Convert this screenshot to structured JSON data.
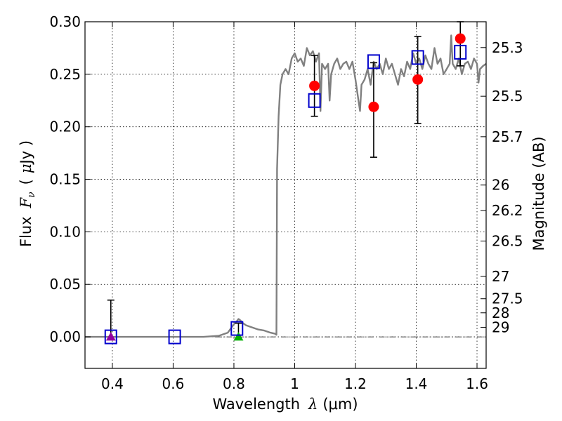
{
  "chart_data": {
    "type": "scatter",
    "xlabel_prefix": "Wavelength",
    "xlabel_symbol": "λ",
    "xlabel_units": "(μm)",
    "ylabel_prefix": "Flux",
    "ylabel_symbol": "F",
    "ylabel_subscript": "ν",
    "ylabel_units_open": "(",
    "ylabel_units_mu": "μ",
    "ylabel_units_rest": "Jy )",
    "y2label": "Magnitude (AB)",
    "xlim": [
      0.31,
      1.63
    ],
    "ylim": [
      -0.03,
      0.3
    ],
    "grid": true,
    "x_ticks": [
      {
        "value": 0.4,
        "label": "0.4"
      },
      {
        "value": 0.6,
        "label": "0.6"
      },
      {
        "value": 0.8,
        "label": "0.8"
      },
      {
        "value": 1.0,
        "label": "1"
      },
      {
        "value": 1.2,
        "label": "1.2"
      },
      {
        "value": 1.4,
        "label": "1.4"
      },
      {
        "value": 1.6,
        "label": "1.6"
      }
    ],
    "y_ticks": [
      {
        "value": 0.0,
        "label": "0.00"
      },
      {
        "value": 0.05,
        "label": "0.05"
      },
      {
        "value": 0.1,
        "label": "0.10"
      },
      {
        "value": 0.15,
        "label": "0.15"
      },
      {
        "value": 0.2,
        "label": "0.20"
      },
      {
        "value": 0.25,
        "label": "0.25"
      },
      {
        "value": 0.3,
        "label": "0.30"
      }
    ],
    "mag_ticks": [
      {
        "value": 25.3,
        "label": "25.3"
      },
      {
        "value": 25.5,
        "label": "25.5"
      },
      {
        "value": 25.7,
        "label": "25.7"
      },
      {
        "value": 26.0,
        "label": "26"
      },
      {
        "value": 26.2,
        "label": "26.2"
      },
      {
        "value": 26.5,
        "label": "26.5"
      },
      {
        "value": 27.0,
        "label": "27"
      },
      {
        "value": 27.5,
        "label": "27.5"
      },
      {
        "value": 28.0,
        "label": "28"
      },
      {
        "value": 29.0,
        "label": "29"
      }
    ],
    "model_sed": {
      "color": "#808080",
      "points": [
        [
          0.31,
          0.0
        ],
        [
          0.7,
          0.0
        ],
        [
          0.75,
          0.001
        ],
        [
          0.78,
          0.004
        ],
        [
          0.79,
          0.008
        ],
        [
          0.8,
          0.012
        ],
        [
          0.81,
          0.015
        ],
        [
          0.815,
          0.017
        ],
        [
          0.82,
          0.016
        ],
        [
          0.83,
          0.013
        ],
        [
          0.84,
          0.011
        ],
        [
          0.86,
          0.009
        ],
        [
          0.88,
          0.007
        ],
        [
          0.9,
          0.006
        ],
        [
          0.92,
          0.004
        ],
        [
          0.935,
          0.003
        ],
        [
          0.94,
          0.002
        ],
        [
          0.942,
          0.16
        ],
        [
          0.947,
          0.21
        ],
        [
          0.953,
          0.24
        ],
        [
          0.96,
          0.25
        ],
        [
          0.97,
          0.255
        ],
        [
          0.98,
          0.25
        ],
        [
          0.99,
          0.265
        ],
        [
          1.0,
          0.27
        ],
        [
          1.01,
          0.262
        ],
        [
          1.02,
          0.265
        ],
        [
          1.03,
          0.258
        ],
        [
          1.04,
          0.275
        ],
        [
          1.05,
          0.268
        ],
        [
          1.06,
          0.272
        ],
        [
          1.07,
          0.262
        ],
        [
          1.08,
          0.27
        ],
        [
          1.085,
          0.215
        ],
        [
          1.09,
          0.26
        ],
        [
          1.1,
          0.255
        ],
        [
          1.11,
          0.26
        ],
        [
          1.115,
          0.225
        ],
        [
          1.12,
          0.25
        ],
        [
          1.13,
          0.26
        ],
        [
          1.14,
          0.265
        ],
        [
          1.15,
          0.255
        ],
        [
          1.16,
          0.26
        ],
        [
          1.17,
          0.262
        ],
        [
          1.18,
          0.255
        ],
        [
          1.19,
          0.262
        ],
        [
          1.2,
          0.245
        ],
        [
          1.21,
          0.225
        ],
        [
          1.215,
          0.215
        ],
        [
          1.22,
          0.24
        ],
        [
          1.23,
          0.245
        ],
        [
          1.24,
          0.255
        ],
        [
          1.25,
          0.24
        ],
        [
          1.26,
          0.262
        ],
        [
          1.27,
          0.255
        ],
        [
          1.28,
          0.26
        ],
        [
          1.29,
          0.25
        ],
        [
          1.3,
          0.265
        ],
        [
          1.31,
          0.255
        ],
        [
          1.32,
          0.26
        ],
        [
          1.33,
          0.25
        ],
        [
          1.34,
          0.24
        ],
        [
          1.35,
          0.255
        ],
        [
          1.36,
          0.248
        ],
        [
          1.37,
          0.262
        ],
        [
          1.38,
          0.255
        ],
        [
          1.39,
          0.27
        ],
        [
          1.4,
          0.26
        ],
        [
          1.41,
          0.265
        ],
        [
          1.42,
          0.255
        ],
        [
          1.43,
          0.268
        ],
        [
          1.44,
          0.26
        ],
        [
          1.45,
          0.255
        ],
        [
          1.46,
          0.275
        ],
        [
          1.47,
          0.26
        ],
        [
          1.48,
          0.265
        ],
        [
          1.49,
          0.25
        ],
        [
          1.5,
          0.255
        ],
        [
          1.51,
          0.26
        ],
        [
          1.515,
          0.287
        ],
        [
          1.52,
          0.26
        ],
        [
          1.53,
          0.255
        ],
        [
          1.54,
          0.265
        ],
        [
          1.55,
          0.25
        ],
        [
          1.56,
          0.26
        ],
        [
          1.57,
          0.262
        ],
        [
          1.58,
          0.255
        ],
        [
          1.59,
          0.265
        ],
        [
          1.6,
          0.26
        ],
        [
          1.605,
          0.242
        ],
        [
          1.61,
          0.255
        ],
        [
          1.62,
          0.258
        ],
        [
          1.63,
          0.26
        ]
      ]
    },
    "observed": {
      "color": "#ff0000",
      "points": [
        {
          "x": 1.065,
          "y": 0.239,
          "yerr_low": 0.21,
          "yerr_high": 0.268
        },
        {
          "x": 1.26,
          "y": 0.219,
          "yerr_low": 0.171,
          "yerr_high": 0.261
        },
        {
          "x": 1.405,
          "y": 0.245,
          "yerr_low": 0.203,
          "yerr_high": 0.286
        },
        {
          "x": 1.545,
          "y": 0.284,
          "yerr_low": 0.258,
          "yerr_high": 0.3
        }
      ]
    },
    "upper_limits": {
      "points": [
        {
          "x": 0.395,
          "y": 0.0,
          "yerr_high": 0.035,
          "color": "#9400a0"
        },
        {
          "x": 0.815,
          "y": 0.0,
          "yerr_high": 0.013,
          "color": "#00b000"
        }
      ]
    },
    "model_photometry": {
      "color": "#0000cc",
      "points": [
        {
          "x": 0.395,
          "y": 0.0
        },
        {
          "x": 0.605,
          "y": 0.0
        },
        {
          "x": 0.81,
          "y": 0.008
        },
        {
          "x": 1.065,
          "y": 0.225
        },
        {
          "x": 1.26,
          "y": 0.262
        },
        {
          "x": 1.405,
          "y": 0.266
        },
        {
          "x": 1.545,
          "y": 0.271
        }
      ]
    }
  }
}
